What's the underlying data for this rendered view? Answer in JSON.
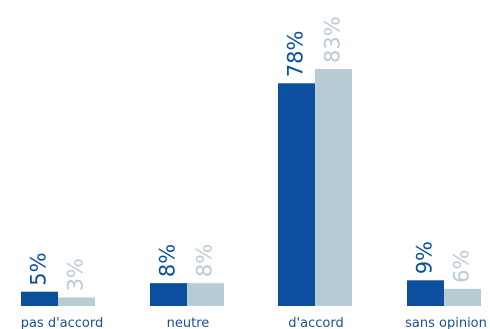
{
  "chart_data": {
    "type": "bar",
    "categories": [
      "pas d'accord",
      "neutre",
      "d'accord",
      "sans opinion"
    ],
    "series": [
      {
        "values": [
          5,
          8,
          78,
          9
        ],
        "labels": [
          "5%",
          "8%",
          "78%",
          "9%"
        ],
        "color": "#0b4f9e"
      },
      {
        "values": [
          3,
          8,
          83,
          6
        ],
        "labels": [
          "3%",
          "8%",
          "83%",
          "6%"
        ],
        "color": "#b8ccd6"
      }
    ],
    "title": "",
    "xlabel": "",
    "ylabel": "",
    "ylim": [
      0,
      83
    ],
    "grid": false,
    "legend": "none"
  }
}
